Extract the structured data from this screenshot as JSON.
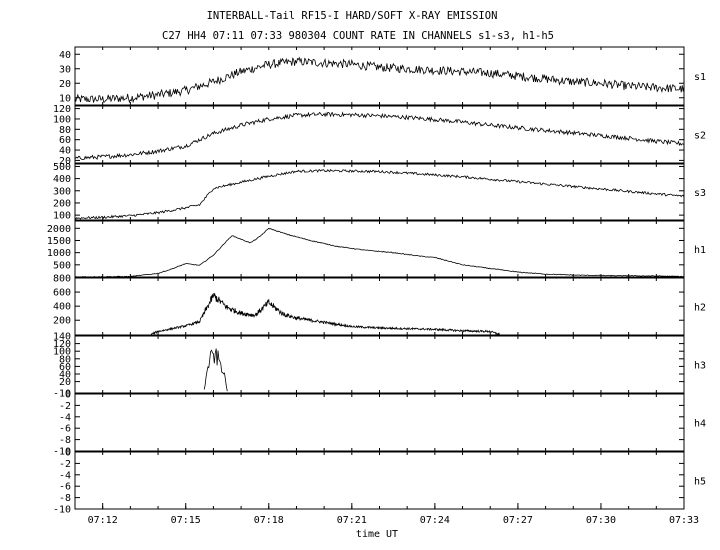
{
  "title": "INTERBALL-Tail RF15-I HARD/SOFT X-RAY EMISSION",
  "subtitle": "C27 HH4 07:11 07:33 980304  COUNT RATE IN CHANNELS s1-s3, h1-h5",
  "chart_data": {
    "type": "line",
    "title": "INTERBALL-Tail RF15-I HARD/SOFT X-RAY EMISSION",
    "subtitle": "C27 HH4 07:11 07:33 980304  COUNT RATE IN CHANNELS s1-s3, h1-h5",
    "xlabel": "time UT",
    "x_range": [
      "07:11",
      "07:33"
    ],
    "x_ticks": [
      "07:12",
      "07:15",
      "07:18",
      "07:21",
      "07:24",
      "07:27",
      "07:30",
      "07:33"
    ],
    "legend": "none",
    "grid": false,
    "series": [
      {
        "name": "s1",
        "ylim": [
          5,
          45
        ],
        "yticks": [
          "10",
          "20",
          "30",
          "40"
        ],
        "noise": 3,
        "points": [
          [
            "07:11",
            9
          ],
          [
            "07:12",
            9
          ],
          [
            "07:13",
            10
          ],
          [
            "07:14",
            12
          ],
          [
            "07:15",
            15
          ],
          [
            "07:16",
            21
          ],
          [
            "07:17",
            28
          ],
          [
            "07:18",
            33
          ],
          [
            "07:19",
            35
          ],
          [
            "07:20",
            34
          ],
          [
            "07:21",
            33
          ],
          [
            "07:22",
            31
          ],
          [
            "07:23",
            30
          ],
          [
            "07:24",
            29
          ],
          [
            "07:25",
            28
          ],
          [
            "07:26",
            27
          ],
          [
            "07:27",
            25
          ],
          [
            "07:28",
            23
          ],
          [
            "07:29",
            21
          ],
          [
            "07:30",
            20
          ],
          [
            "07:31",
            18
          ],
          [
            "07:32",
            17
          ],
          [
            "07:33",
            16
          ]
        ]
      },
      {
        "name": "s2",
        "ylim": [
          15,
          125
        ],
        "yticks": [
          "20",
          "40",
          "60",
          "80",
          "100",
          "120"
        ],
        "noise": 4,
        "points": [
          [
            "07:11",
            24
          ],
          [
            "07:12",
            27
          ],
          [
            "07:13",
            31
          ],
          [
            "07:14",
            38
          ],
          [
            "07:15",
            48
          ],
          [
            "07:16",
            72
          ],
          [
            "07:17",
            88
          ],
          [
            "07:18",
            100
          ],
          [
            "07:19",
            107
          ],
          [
            "07:20",
            109
          ],
          [
            "07:21",
            108
          ],
          [
            "07:22",
            106
          ],
          [
            "07:23",
            103
          ],
          [
            "07:24",
            99
          ],
          [
            "07:25",
            94
          ],
          [
            "07:26",
            88
          ],
          [
            "07:27",
            83
          ],
          [
            "07:28",
            78
          ],
          [
            "07:29",
            73
          ],
          [
            "07:30",
            68
          ],
          [
            "07:31",
            63
          ],
          [
            "07:32",
            57
          ],
          [
            "07:33",
            52
          ]
        ]
      },
      {
        "name": "s3",
        "ylim": [
          60,
          520
        ],
        "yticks": [
          "100",
          "200",
          "300",
          "400",
          "500"
        ],
        "noise": 10,
        "points": [
          [
            "07:11",
            75
          ],
          [
            "07:12",
            82
          ],
          [
            "07:13",
            95
          ],
          [
            "07:14",
            120
          ],
          [
            "07:15",
            160
          ],
          [
            "07:15:30",
            185
          ],
          [
            "07:16",
            320
          ],
          [
            "07:17",
            370
          ],
          [
            "07:18",
            420
          ],
          [
            "07:19",
            460
          ],
          [
            "07:20",
            465
          ],
          [
            "07:21",
            462
          ],
          [
            "07:22",
            458
          ],
          [
            "07:23",
            445
          ],
          [
            "07:24",
            430
          ],
          [
            "07:25",
            415
          ],
          [
            "07:26",
            395
          ],
          [
            "07:27",
            375
          ],
          [
            "07:28",
            355
          ],
          [
            "07:29",
            335
          ],
          [
            "07:30",
            315
          ],
          [
            "07:31",
            295
          ],
          [
            "07:32",
            275
          ],
          [
            "07:33",
            255
          ]
        ]
      },
      {
        "name": "h1",
        "ylim": [
          0,
          2300
        ],
        "yticks": [
          "500",
          "1000",
          "1500",
          "2000"
        ],
        "noise": 15,
        "points": [
          [
            "07:11",
            5
          ],
          [
            "07:13",
            20
          ],
          [
            "07:14",
            150
          ],
          [
            "07:14:30",
            330
          ],
          [
            "07:15",
            550
          ],
          [
            "07:15:30",
            480
          ],
          [
            "07:16",
            900
          ],
          [
            "07:16:40",
            1700
          ],
          [
            "07:17:20",
            1400
          ],
          [
            "07:17:40",
            1650
          ],
          [
            "07:18",
            2000
          ],
          [
            "07:18:40",
            1750
          ],
          [
            "07:19:30",
            1500
          ],
          [
            "07:20:30",
            1250
          ],
          [
            "07:21:30",
            1100
          ],
          [
            "07:22:30",
            1000
          ],
          [
            "07:23:30",
            850
          ],
          [
            "07:24",
            800
          ],
          [
            "07:24:30",
            650
          ],
          [
            "07:25",
            500
          ],
          [
            "07:26",
            350
          ],
          [
            "07:27",
            200
          ],
          [
            "07:28",
            120
          ],
          [
            "07:29",
            80
          ],
          [
            "07:30",
            60
          ],
          [
            "07:31",
            50
          ],
          [
            "07:32",
            40
          ],
          [
            "07:33",
            20
          ]
        ]
      },
      {
        "name": "h2",
        "ylim": [
          -10,
          800
        ],
        "yticks": [
          "200",
          "400",
          "600",
          "800"
        ],
        "noise": 45,
        "points": [
          [
            "07:13:45",
            0
          ],
          [
            "07:14",
            40
          ],
          [
            "07:15",
            120
          ],
          [
            "07:15:30",
            180
          ],
          [
            "07:16",
            550
          ],
          [
            "07:16:30",
            380
          ],
          [
            "07:17",
            300
          ],
          [
            "07:17:30",
            270
          ],
          [
            "07:18",
            450
          ],
          [
            "07:18:30",
            290
          ],
          [
            "07:19",
            230
          ],
          [
            "07:20",
            170
          ],
          [
            "07:21",
            110
          ],
          [
            "07:22",
            90
          ],
          [
            "07:23",
            80
          ],
          [
            "07:24",
            70
          ],
          [
            "07:25",
            50
          ],
          [
            "07:26",
            40
          ],
          [
            "07:26:20",
            0
          ]
        ]
      },
      {
        "name": "h3",
        "ylim": [
          -10,
          140
        ],
        "yticks": [
          "-10",
          "20",
          "40",
          "60",
          "80",
          "100",
          "120",
          "140"
        ],
        "noise": 20,
        "points": [
          [
            "07:15:40",
            0
          ],
          [
            "07:15:50",
            70
          ],
          [
            "07:16",
            90
          ],
          [
            "07:16:10",
            80
          ],
          [
            "07:16:20",
            55
          ],
          [
            "07:16:30",
            0
          ]
        ]
      },
      {
        "name": "h4",
        "ylim": [
          -10,
          0
        ],
        "yticks": [
          "-10",
          "-8",
          "-6",
          "-4",
          "-2",
          "0"
        ],
        "noise": 0,
        "points": []
      },
      {
        "name": "h5",
        "ylim": [
          -10,
          0
        ],
        "yticks": [
          "-10",
          "-8",
          "-6",
          "-4",
          "-2",
          "0"
        ],
        "noise": 0,
        "points": []
      }
    ]
  }
}
